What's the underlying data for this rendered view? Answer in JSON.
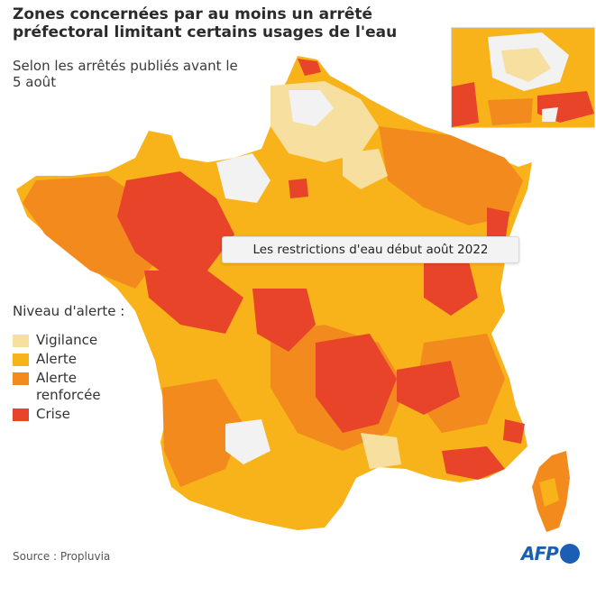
{
  "title": "Zones concernées par au moins un arrêté préfectoral limitant certains usages de l'eau",
  "subtitle": "Selon les arrêtés publiés avant le 5 août",
  "tooltip": "Les restrictions d'eau début août 2022",
  "legend": {
    "title": "Niveau d'alerte :",
    "items": [
      {
        "label": "Vigilance",
        "color": "#f7dfa0"
      },
      {
        "label": "Alerte",
        "color": "#f8b31a"
      },
      {
        "label": "Alerte renforcée",
        "color": "#f28a1e"
      },
      {
        "label": "Crise",
        "color": "#e8442a"
      }
    ]
  },
  "source": "Source : Propluvia",
  "logo": {
    "text": "AFP",
    "color": "#1a5fb4"
  },
  "colors": {
    "background": "#ffffff",
    "no_restriction": "#f2f2f2"
  }
}
